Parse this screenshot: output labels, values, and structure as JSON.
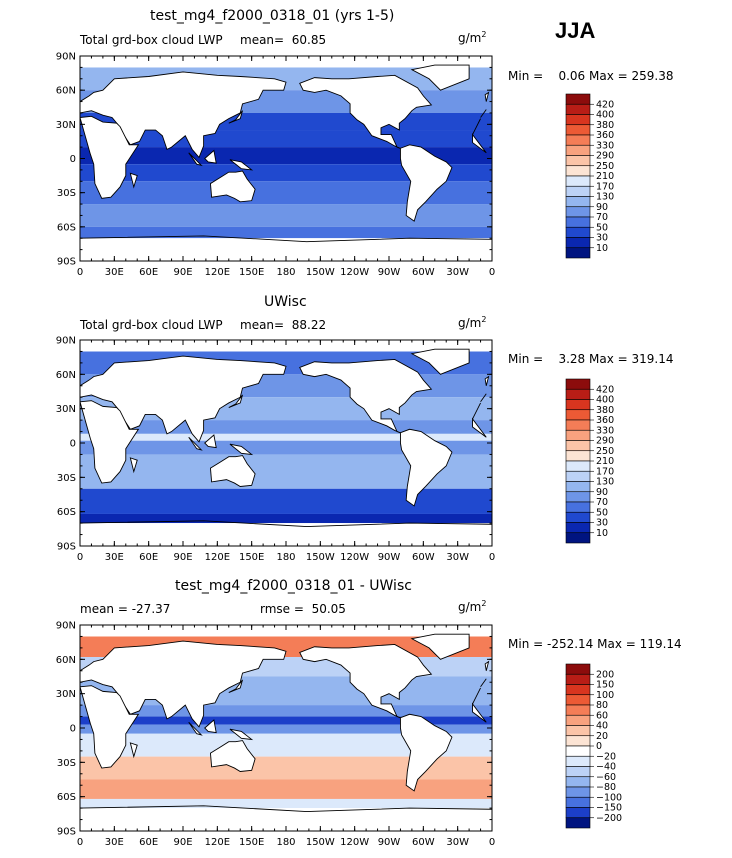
{
  "season": "JJA",
  "chart_data": [
    {
      "type": "heatmap",
      "title": "test_mg4_f2000_0318_01 (yrs 1-5)",
      "subtitle": "Total grd-box cloud LWP",
      "mean_label": "mean=",
      "mean": "60.85",
      "units": "g/m",
      "units_sup": "2",
      "min_label": "Min =",
      "min": "0.06",
      "max_label": "Max =",
      "max": "259.38",
      "colorbar_levels": [
        "420",
        "400",
        "380",
        "360",
        "330",
        "290",
        "250",
        "210",
        "170",
        "130",
        "90",
        "70",
        "50",
        "30",
        "10"
      ],
      "colorbar_colors": [
        "#8c0c0c",
        "#b81d16",
        "#d8351f",
        "#ec5a35",
        "#f47d57",
        "#f8a27f",
        "#fbc4a8",
        "#fce4d4",
        "#dce9fb",
        "#bcd2f6",
        "#94b6ef",
        "#6e95e7",
        "#4771df",
        "#2049cf",
        "#0a27b0",
        "#001480"
      ],
      "xticks": [
        "0",
        "30E",
        "60E",
        "90E",
        "120E",
        "150E",
        "180",
        "150W",
        "120W",
        "90W",
        "60W",
        "30W",
        "0"
      ],
      "yticks": [
        "90N",
        "60N",
        "30N",
        "0",
        "30S",
        "60S",
        "90S"
      ]
    },
    {
      "type": "heatmap",
      "title": "UWisc",
      "subtitle": "Total grd-box cloud LWP",
      "mean_label": "mean=",
      "mean": "88.22",
      "units": "g/m",
      "units_sup": "2",
      "min_label": "Min =",
      "min": "3.28",
      "max_label": "Max =",
      "max": "319.14",
      "colorbar_levels": [
        "420",
        "400",
        "380",
        "360",
        "330",
        "290",
        "250",
        "210",
        "170",
        "130",
        "90",
        "70",
        "50",
        "30",
        "10"
      ],
      "colorbar_colors": [
        "#8c0c0c",
        "#b81d16",
        "#d8351f",
        "#ec5a35",
        "#f47d57",
        "#f8a27f",
        "#fbc4a8",
        "#fce4d4",
        "#dce9fb",
        "#bcd2f6",
        "#94b6ef",
        "#6e95e7",
        "#4771df",
        "#2049cf",
        "#0a27b0",
        "#001480"
      ],
      "xticks": [
        "0",
        "30E",
        "60E",
        "90E",
        "120E",
        "150E",
        "180",
        "150W",
        "120W",
        "90W",
        "60W",
        "30W",
        "0"
      ],
      "yticks": [
        "90N",
        "60N",
        "30N",
        "0",
        "30S",
        "60S",
        "90S"
      ]
    },
    {
      "type": "heatmap",
      "title": "test_mg4_f2000_0318_01 - UWisc",
      "subtitle": "mean = -27.37",
      "rmse_label": "rmse =",
      "rmse": "50.05",
      "units": "g/m",
      "units_sup": "2",
      "min_label": "Min =",
      "min": "-252.14",
      "max_label": "Max =",
      "max": "119.14",
      "colorbar_levels": [
        "200",
        "150",
        "100",
        "80",
        "60",
        "40",
        "20",
        "0",
        "−20",
        "−40",
        "−60",
        "−80",
        "−100",
        "−150",
        "−200"
      ],
      "colorbar_colors": [
        "#8c0c0c",
        "#b81d16",
        "#d8351f",
        "#ec5a35",
        "#f47d57",
        "#f8a27f",
        "#fbc4a8",
        "#fce4d4",
        "#ffffff",
        "#dce9fb",
        "#bcd2f6",
        "#94b6ef",
        "#6e95e7",
        "#4771df",
        "#1c3fc9",
        "#001480"
      ],
      "xticks": [
        "0",
        "30E",
        "60E",
        "90E",
        "120E",
        "150E",
        "180",
        "150W",
        "120W",
        "90W",
        "60W",
        "30W",
        "0"
      ],
      "yticks": [
        "90N",
        "60N",
        "30N",
        "0",
        "30S",
        "60S",
        "90S"
      ]
    }
  ]
}
